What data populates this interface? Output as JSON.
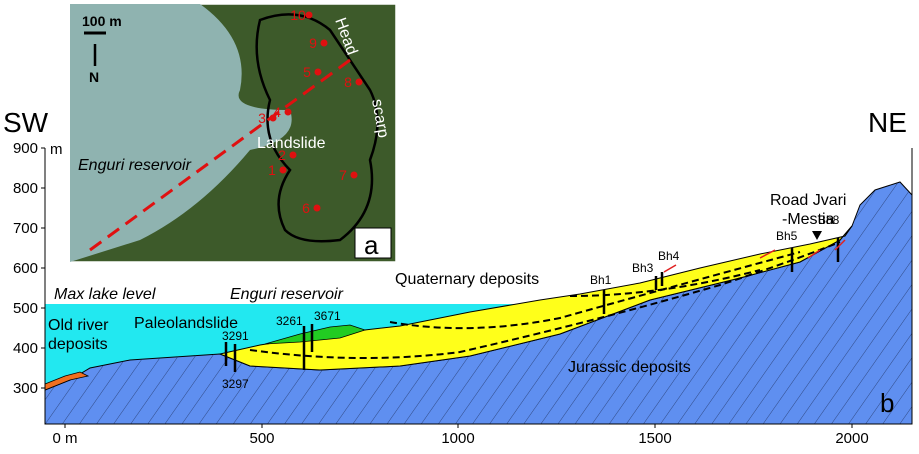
{
  "axis": {
    "left_label": "SW",
    "right_label": "NE",
    "y_unit": "m",
    "y_ticks": [
      "900",
      "800",
      "700",
      "600",
      "500",
      "400",
      "300"
    ],
    "x_ticks": [
      "0 m",
      "500",
      "1000",
      "1500",
      "2000"
    ]
  },
  "labels": {
    "max_lake_level": "Max lake level",
    "reservoir": "Enguri reservoir",
    "old_river": "Old river",
    "old_river_2": "deposits",
    "paleolandslide": "Paleolandslide",
    "quaternary": "Quaternary deposits",
    "jurassic": "Jurassic deposits",
    "road": "Road Jvari",
    "road_2": "-Mestia",
    "panel": "b"
  },
  "boreholes": [
    "3291",
    "3297",
    "3261",
    "3671",
    "Bh1",
    "Bh3",
    "Bh4",
    "Bh5",
    "Bh8"
  ],
  "inset": {
    "scale": "100 m",
    "north": "N",
    "head": "Head",
    "scarp": "scarp",
    "landslide": "Landslide",
    "reservoir": "Enguri reservoir",
    "panel": "a",
    "points": [
      "1",
      "2",
      "3",
      "4",
      "5",
      "6",
      "7",
      "8",
      "9",
      "10"
    ]
  }
}
